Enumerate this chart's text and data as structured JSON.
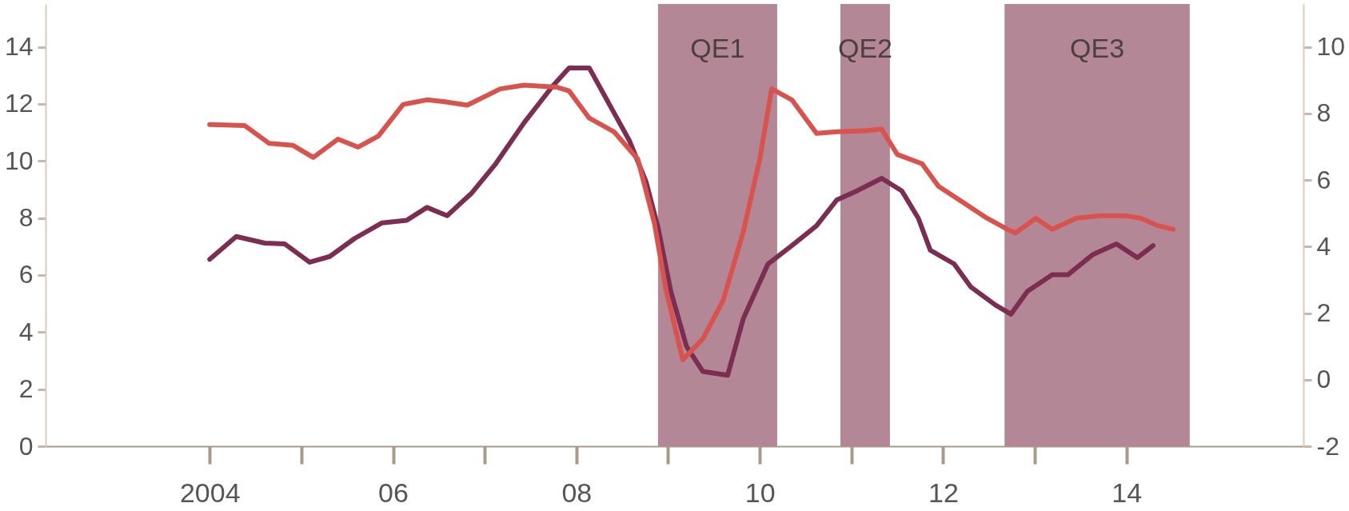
{
  "chart_data": {
    "type": "line",
    "xlim": [
      2002.21,
      2015.93
    ],
    "xticks": [
      2004,
      {
        "value": 2006,
        "label": "06"
      },
      {
        "value": 2008,
        "label": "08"
      },
      {
        "value": 2010,
        "label": "10"
      },
      {
        "value": 2012,
        "label": "12"
      },
      {
        "value": 2014,
        "label": "14"
      }
    ],
    "ylim": [
      0,
      15.5
    ],
    "yticks": [
      0,
      2,
      4,
      6,
      8,
      10,
      12,
      14
    ],
    "y2lim": [
      -2,
      11.29
    ],
    "y2ticks": [
      -2,
      0,
      2,
      4,
      6,
      8,
      10
    ],
    "grid": false,
    "bands": [
      {
        "axis": "x",
        "from": 2008.89,
        "to": 2010.19,
        "label": "QE1",
        "color": "#b48797"
      },
      {
        "axis": "x",
        "from": 2010.88,
        "to": 2011.42,
        "label": "QE2",
        "color": "#b48797"
      },
      {
        "axis": "x",
        "from": 2012.67,
        "to": 2014.69,
        "label": "QE3",
        "color": "#b48797"
      }
    ],
    "series": [
      {
        "color": "#7b2d52",
        "x": [
          2004.0,
          2004.29,
          2004.6,
          2004.82,
          2005.09,
          2005.31,
          2005.58,
          2005.88,
          2006.15,
          2006.37,
          2006.59,
          2006.86,
          2007.12,
          2007.43,
          2007.74,
          2007.92,
          2008.14,
          2008.36,
          2008.58,
          2008.76,
          2008.89,
          2009.03,
          2009.2,
          2009.38,
          2009.65,
          2009.82,
          2010.09,
          2010.35,
          2010.62,
          2010.84,
          2011.06,
          2011.33,
          2011.55,
          2011.73,
          2011.86,
          2012.12,
          2012.3,
          2012.57,
          2012.74,
          2012.92,
          2013.19,
          2013.36,
          2013.63,
          2013.89,
          2014.12,
          2014.29
        ],
        "values": [
          6.55,
          7.35,
          7.12,
          7.09,
          6.45,
          6.65,
          7.28,
          7.83,
          7.92,
          8.37,
          8.08,
          8.88,
          9.9,
          11.34,
          12.62,
          13.26,
          13.26,
          11.98,
          10.7,
          9.27,
          7.67,
          5.43,
          3.51,
          2.62,
          2.49,
          4.47,
          6.39,
          7.03,
          7.73,
          8.63,
          8.95,
          9.39,
          8.95,
          7.99,
          6.87,
          6.39,
          5.59,
          4.95,
          4.63,
          5.43,
          6.01,
          6.01,
          6.71,
          7.09,
          6.61,
          7.03
        ]
      },
      {
        "color": "#d9534e",
        "axis": "y2",
        "x": [
          2004.0,
          2004.38,
          2004.65,
          2004.91,
          2005.13,
          2005.4,
          2005.62,
          2005.84,
          2006.11,
          2006.37,
          2006.55,
          2006.81,
          2007.17,
          2007.43,
          2007.79,
          2007.92,
          2008.14,
          2008.41,
          2008.67,
          2008.85,
          2008.98,
          2009.16,
          2009.38,
          2009.6,
          2009.82,
          2010.0,
          2010.13,
          2010.35,
          2010.62,
          2010.84,
          2011.15,
          2011.33,
          2011.5,
          2011.77,
          2011.95,
          2012.21,
          2012.48,
          2012.7,
          2012.79,
          2013.01,
          2013.19,
          2013.45,
          2013.72,
          2013.98,
          2014.16,
          2014.34,
          2014.51
        ],
        "values": [
          7.67,
          7.64,
          7.1,
          7.04,
          6.68,
          7.23,
          6.99,
          7.32,
          8.27,
          8.41,
          8.36,
          8.25,
          8.74,
          8.85,
          8.79,
          8.68,
          7.86,
          7.45,
          6.63,
          4.71,
          2.66,
          0.6,
          1.23,
          2.38,
          4.44,
          6.63,
          8.74,
          8.41,
          7.4,
          7.45,
          7.48,
          7.53,
          6.77,
          6.49,
          5.81,
          5.34,
          4.85,
          4.52,
          4.41,
          4.85,
          4.52,
          4.85,
          4.93,
          4.93,
          4.85,
          4.63,
          4.52
        ]
      }
    ]
  }
}
